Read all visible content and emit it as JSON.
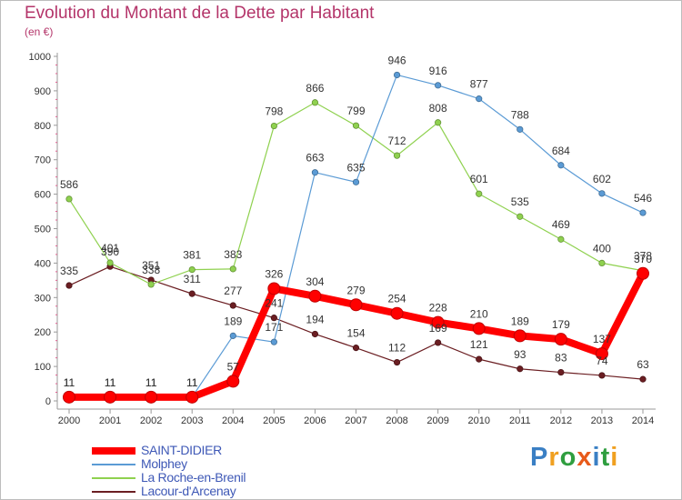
{
  "title": "Evolution du Montant de la Dette par Habitant",
  "subtitle": "(en €)",
  "brand": {
    "text": "Proxiti",
    "letter_colors": [
      "#3a7fc4",
      "#f0a020",
      "#2f9e3f",
      "#e85a1a",
      "#3a7fc4",
      "#2f9e3f",
      "#f0a020"
    ]
  },
  "chart_data": {
    "type": "line",
    "x": [
      2000,
      2001,
      2002,
      2003,
      2004,
      2005,
      2006,
      2007,
      2008,
      2009,
      2010,
      2011,
      2012,
      2013,
      2014
    ],
    "ylim": [
      0,
      1000
    ],
    "yticks": [
      0,
      100,
      200,
      300,
      400,
      500,
      600,
      700,
      800,
      900,
      1000
    ],
    "grid": false,
    "legend_position": "bottom-left",
    "series": [
      {
        "name": "Lacour-d'Arcenay",
        "color": "#6b1e22",
        "emphasis": false,
        "values": [
          335,
          390,
          351,
          311,
          277,
          241,
          194,
          154,
          112,
          169,
          121,
          93,
          83,
          74,
          63
        ]
      },
      {
        "name": "La Roche-en-Brenil",
        "color": "#8fd14f",
        "emphasis": false,
        "values": [
          586,
          401,
          338,
          381,
          383,
          798,
          866,
          799,
          712,
          808,
          601,
          535,
          469,
          400,
          378
        ]
      },
      {
        "name": "Molphey",
        "color": "#5b9bd5",
        "emphasis": false,
        "values": [
          11,
          11,
          11,
          11,
          189,
          171,
          663,
          635,
          946,
          916,
          877,
          788,
          684,
          602,
          546
        ]
      },
      {
        "name": "SAINT-DIDIER",
        "color": "#ff0000",
        "emphasis": true,
        "values": [
          11,
          11,
          11,
          11,
          57,
          326,
          304,
          279,
          254,
          228,
          210,
          189,
          179,
          137,
          370
        ]
      }
    ]
  }
}
